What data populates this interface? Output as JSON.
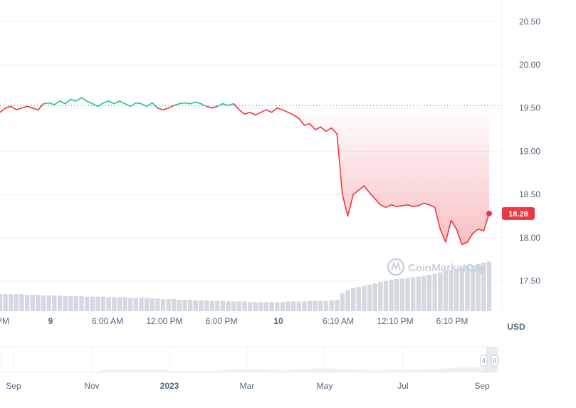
{
  "chart_data": {
    "type": "line",
    "unit_label": "USD",
    "reference_price": 19.53,
    "current_price": 18.28,
    "current_price_label": "18.28",
    "ylim": [
      17.15,
      20.75
    ],
    "y_ticks": [
      "20.50",
      "20.00",
      "19.50",
      "19.00",
      "18.50",
      "18.00",
      "17.50"
    ],
    "y_tick_values": [
      20.5,
      20.0,
      19.5,
      19.0,
      18.5,
      18.0,
      17.5
    ],
    "x_ticks": [
      {
        "label": "PM",
        "bold": false
      },
      {
        "label": "9",
        "bold": true
      },
      {
        "label": "6:00 AM",
        "bold": false
      },
      {
        "label": "12:00 PM",
        "bold": false
      },
      {
        "label": "6:00 PM",
        "bold": false
      },
      {
        "label": "10",
        "bold": true
      },
      {
        "label": "6:10 AM",
        "bold": false
      },
      {
        "label": "12:10 PM",
        "bold": false
      },
      {
        "label": "6:10 PM",
        "bold": false
      }
    ],
    "series": [
      {
        "values": [
          19.45,
          19.5,
          19.52,
          19.48,
          19.5,
          19.52,
          19.5,
          19.48,
          19.55,
          19.56,
          19.54,
          19.58,
          19.55,
          19.6,
          19.58,
          19.62,
          19.58,
          19.55,
          19.52,
          19.56,
          19.58,
          19.55,
          19.58,
          19.55,
          19.52,
          19.56,
          19.55,
          19.52,
          19.56,
          19.5,
          19.48,
          19.5,
          19.53,
          19.55,
          19.56,
          19.55,
          19.57,
          19.55,
          19.52,
          19.5,
          19.52,
          19.55,
          19.53,
          19.55,
          19.48,
          19.43,
          19.45,
          19.42,
          19.45,
          19.48,
          19.45,
          19.5,
          19.48,
          19.45,
          19.42,
          19.38,
          19.3,
          19.32,
          19.25,
          19.28,
          19.23,
          19.27,
          19.2,
          18.5,
          18.25,
          18.5,
          18.55,
          18.6,
          18.52,
          18.45,
          18.38,
          18.35,
          18.38,
          18.36,
          18.37,
          18.38,
          18.36,
          18.37,
          18.4,
          18.38,
          18.35,
          18.1,
          17.95,
          18.2,
          18.1,
          17.92,
          17.95,
          18.05,
          18.1,
          18.08,
          18.28
        ]
      }
    ],
    "volume": [
      0.28,
      0.28,
      0.28,
      0.28,
      0.28,
      0.27,
      0.27,
      0.27,
      0.26,
      0.26,
      0.26,
      0.26,
      0.25,
      0.25,
      0.25,
      0.25,
      0.24,
      0.24,
      0.24,
      0.24,
      0.23,
      0.23,
      0.23,
      0.23,
      0.22,
      0.22,
      0.22,
      0.22,
      0.21,
      0.21,
      0.2,
      0.2,
      0.2,
      0.19,
      0.19,
      0.19,
      0.18,
      0.18,
      0.18,
      0.17,
      0.17,
      0.17,
      0.16,
      0.16,
      0.16,
      0.16,
      0.15,
      0.15,
      0.15,
      0.15,
      0.15,
      0.15,
      0.15,
      0.16,
      0.16,
      0.16,
      0.16,
      0.17,
      0.17,
      0.17,
      0.17,
      0.18,
      0.19,
      0.3,
      0.35,
      0.38,
      0.4,
      0.42,
      0.44,
      0.46,
      0.48,
      0.5,
      0.52,
      0.53,
      0.54,
      0.55,
      0.56,
      0.57,
      0.58,
      0.6,
      0.62,
      0.64,
      0.66,
      0.68,
      0.7,
      0.72,
      0.74,
      0.76,
      0.78,
      0.8,
      0.82
    ],
    "navigator": {
      "ticks": [
        {
          "label": "Sep",
          "bold": false
        },
        {
          "label": "Nov",
          "bold": false
        },
        {
          "label": "2023",
          "bold": true
        },
        {
          "label": "Mar",
          "bold": false
        },
        {
          "label": "May",
          "bold": false
        },
        {
          "label": "Jul",
          "bold": false
        },
        {
          "label": "Sep",
          "bold": false
        }
      ]
    },
    "watermark": "CoinMarketCap",
    "colors": {
      "down": "#ea3943",
      "up": "#16c784",
      "grid": "#eff2f5",
      "reference_line": "#58667e",
      "volume": "#d4d8df",
      "text": "#58667e"
    }
  }
}
